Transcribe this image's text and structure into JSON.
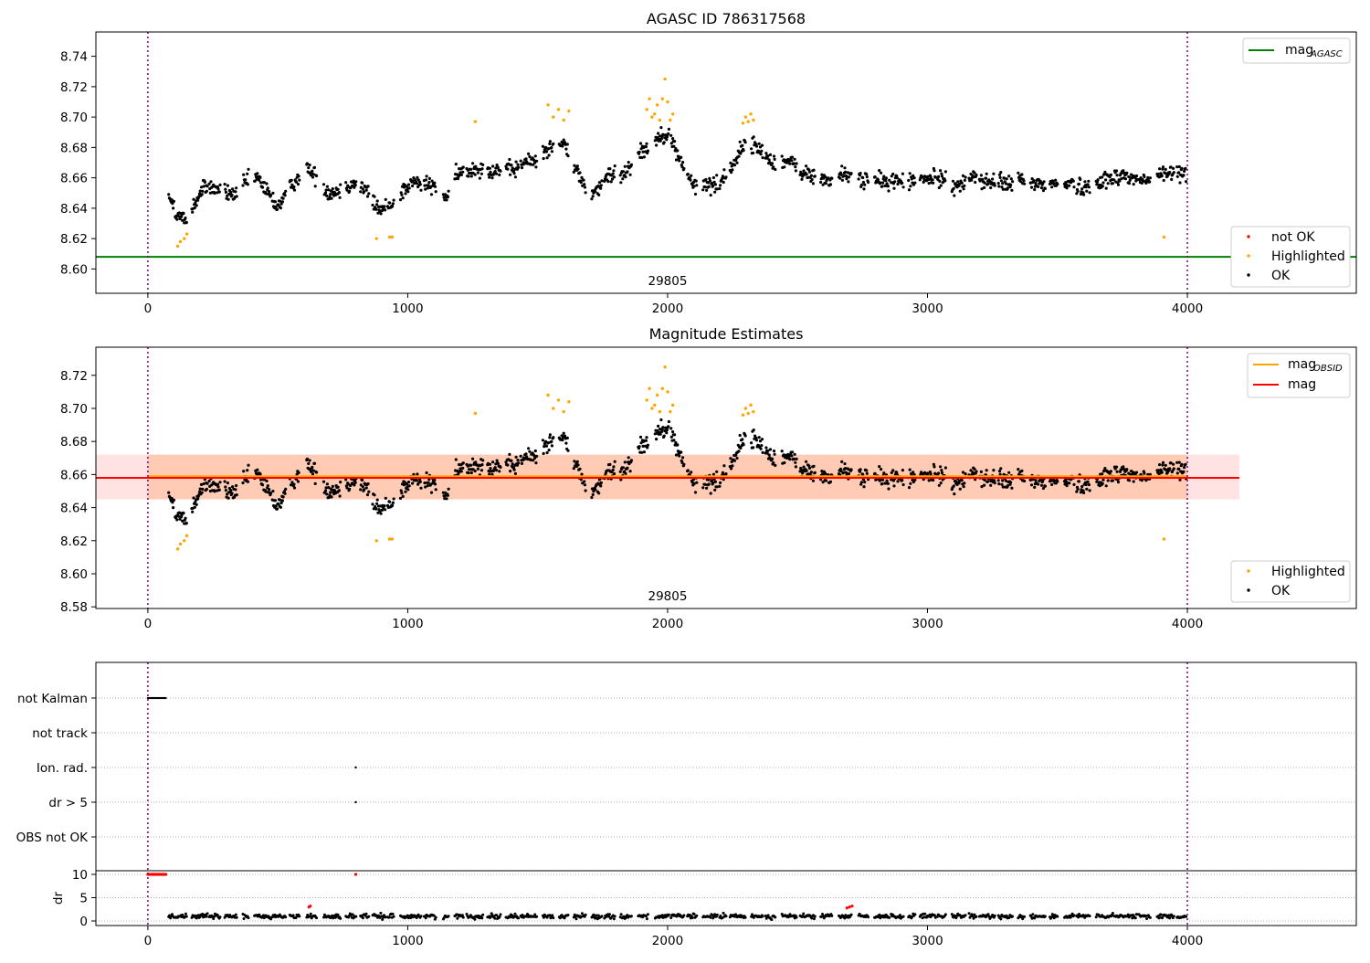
{
  "chart_data": [
    {
      "type": "scatter",
      "title": "AGASC ID 786317568",
      "xlim": [
        -200,
        4650
      ],
      "ylim": [
        8.584,
        8.756
      ],
      "xticks": [
        "0",
        "1000",
        "2000",
        "3000",
        "4000"
      ],
      "yticks": [
        "8.60",
        "8.62",
        "8.64",
        "8.66",
        "8.68",
        "8.70",
        "8.72",
        "8.74"
      ],
      "vlines": [
        0,
        4000
      ],
      "hlines": [
        {
          "name": "mag_AGASC",
          "y": 8.608,
          "color": "#008000"
        }
      ],
      "annotation": {
        "text": "29805",
        "x": 2000
      },
      "legend_lines": [
        {
          "label": "mag",
          "sub": "AGASC",
          "color": "#008000",
          "position": "top-right"
        }
      ],
      "legend_points": [
        {
          "label": "not OK",
          "color": "#ff0000"
        },
        {
          "label": "Highlighted",
          "color": "#ffa500"
        },
        {
          "label": "OK",
          "color": "#000000"
        }
      ],
      "series": [
        {
          "name": "OK",
          "color": "#000000",
          "profile": [
            [
              80,
              8.645
            ],
            [
              150,
              8.635
            ],
            [
              220,
              8.655
            ],
            [
              350,
              8.65
            ],
            [
              420,
              8.66
            ],
            [
              500,
              8.64
            ],
            [
              600,
              8.665
            ],
            [
              700,
              8.65
            ],
            [
              800,
              8.655
            ],
            [
              900,
              8.64
            ],
            [
              1000,
              8.655
            ],
            [
              1150,
              8.65
            ],
            [
              1250,
              8.665
            ],
            [
              1400,
              8.668
            ],
            [
              1550,
              8.675
            ],
            [
              1600,
              8.682
            ],
            [
              1700,
              8.648
            ],
            [
              1800,
              8.66
            ],
            [
              1900,
              8.68
            ],
            [
              2000,
              8.69
            ],
            [
              2100,
              8.655
            ],
            [
              2200,
              8.655
            ],
            [
              2300,
              8.685
            ],
            [
              2400,
              8.672
            ],
            [
              2600,
              8.66
            ],
            [
              2800,
              8.658
            ],
            [
              3000,
              8.657
            ],
            [
              3200,
              8.66
            ],
            [
              3400,
              8.655
            ],
            [
              3600,
              8.655
            ],
            [
              3800,
              8.66
            ],
            [
              4000,
              8.665
            ]
          ]
        },
        {
          "name": "Highlighted",
          "color": "#ffa500",
          "points": [
            [
              115,
              8.615
            ],
            [
              125,
              8.618
            ],
            [
              140,
              8.62
            ],
            [
              150,
              8.623
            ],
            [
              880,
              8.62
            ],
            [
              930,
              8.621
            ],
            [
              940,
              8.621
            ],
            [
              1260,
              8.697
            ],
            [
              1540,
              8.708
            ],
            [
              1560,
              8.7
            ],
            [
              1580,
              8.705
            ],
            [
              1600,
              8.698
            ],
            [
              1620,
              8.704
            ],
            [
              1920,
              8.705
            ],
            [
              1930,
              8.712
            ],
            [
              1940,
              8.7
            ],
            [
              1950,
              8.702
            ],
            [
              1960,
              8.708
            ],
            [
              1970,
              8.698
            ],
            [
              1980,
              8.712
            ],
            [
              1990,
              8.725
            ],
            [
              2000,
              8.71
            ],
            [
              2010,
              8.698
            ],
            [
              2020,
              8.702
            ],
            [
              2290,
              8.696
            ],
            [
              2300,
              8.7
            ],
            [
              2310,
              8.697
            ],
            [
              2320,
              8.702
            ],
            [
              2330,
              8.698
            ],
            [
              3910,
              8.621
            ]
          ]
        }
      ]
    },
    {
      "type": "scatter",
      "title": "Magnitude Estimates",
      "xlim": [
        -200,
        4650
      ],
      "ylim": [
        8.579,
        8.737
      ],
      "xticks": [
        "0",
        "1000",
        "2000",
        "3000",
        "4000"
      ],
      "yticks": [
        "8.58",
        "8.60",
        "8.62",
        "8.64",
        "8.66",
        "8.68",
        "8.70",
        "8.72"
      ],
      "vlines": [
        0,
        4000
      ],
      "bands": [
        {
          "x": [
            -200,
            4200
          ],
          "y": [
            8.645,
            8.672
          ],
          "color": "#ffb6b6",
          "opacity": 0.4
        },
        {
          "x": [
            0,
            4000
          ],
          "y": [
            8.645,
            8.672
          ],
          "color": "#ffa060",
          "opacity": 0.35
        }
      ],
      "hlines": [
        {
          "name": "mag_OBSID",
          "y": 8.659,
          "x": [
            0,
            4000
          ],
          "color": "#ffa500"
        },
        {
          "name": "mag",
          "y": 8.658,
          "x": [
            -200,
            4200
          ],
          "color": "#ff0000"
        }
      ],
      "annotation": {
        "text": "29805",
        "x": 2000
      },
      "legend_lines": [
        {
          "label": "mag",
          "sub": "OBSID",
          "color": "#ffa500",
          "position": "top-right"
        },
        {
          "label": "mag",
          "sub": "",
          "color": "#ff0000",
          "position": "top-right"
        }
      ],
      "legend_points": [
        {
          "label": "Highlighted",
          "color": "#ffa500"
        },
        {
          "label": "OK",
          "color": "#000000"
        }
      ]
    },
    {
      "type": "scatter",
      "title": "",
      "xlim": [
        -200,
        4650
      ],
      "xticks": [
        "0",
        "1000",
        "2000",
        "3000",
        "4000"
      ],
      "vlines": [
        0,
        4000
      ],
      "categories": [
        "not Kalman",
        "not track",
        "Ion. rad.",
        "dr > 5",
        "OBS not OK"
      ],
      "flags": [
        {
          "category": "not Kalman",
          "x_range": [
            0,
            70
          ]
        },
        {
          "category": "Ion. rad.",
          "x": [
            800
          ]
        },
        {
          "category": "dr > 5",
          "x": [
            800
          ]
        }
      ],
      "dr_panel": {
        "ylabel": "dr",
        "ylim": [
          -0.5,
          10.5
        ],
        "yticks": [
          "0",
          "5",
          "10"
        ],
        "clipped_red": {
          "y": 10,
          "x_range": [
            0,
            70
          ],
          "x_extra": [
            800
          ]
        },
        "red_points": [
          [
            620,
            3.0
          ],
          [
            625,
            3.2
          ],
          [
            2690,
            2.8
          ],
          [
            2700,
            3.0
          ],
          [
            2710,
            3.2
          ]
        ],
        "base_level": 1.0
      }
    }
  ]
}
